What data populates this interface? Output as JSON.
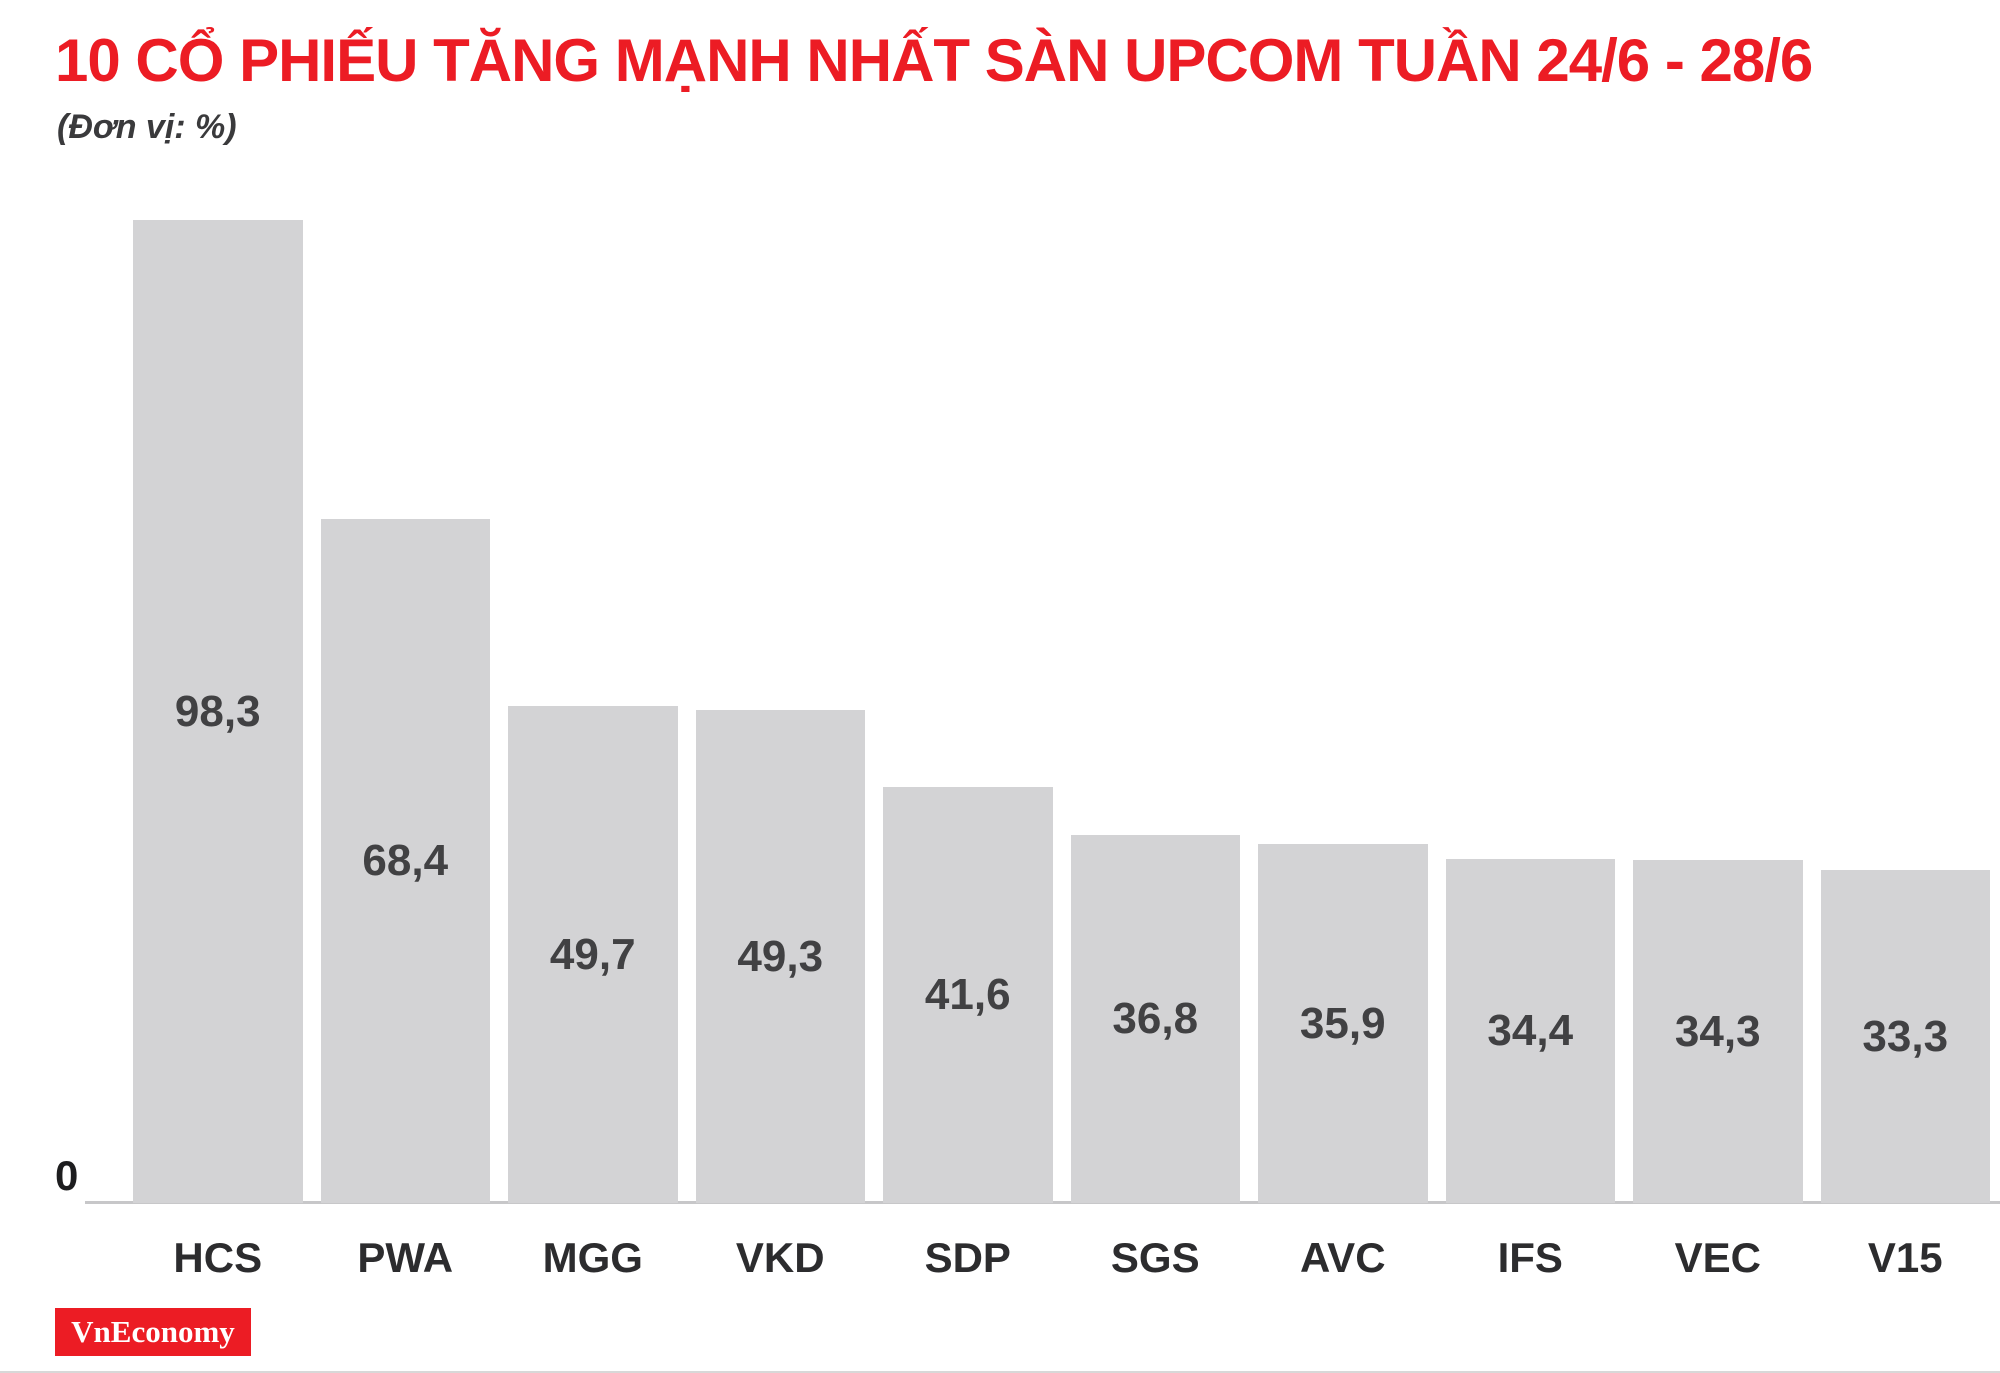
{
  "header": {
    "title": "10 CỔ PHIẾU TĂNG MẠNH NHẤT SÀN UPCOM TUẦN 24/6 - 28/6",
    "subtitle": "(Đơn vị: %)"
  },
  "chart_data": {
    "type": "bar",
    "categories": [
      "HCS",
      "PWA",
      "MGG",
      "VKD",
      "SDP",
      "SGS",
      "AVC",
      "IFS",
      "VEC",
      "V15"
    ],
    "values": [
      98.3,
      68.4,
      49.7,
      49.3,
      41.6,
      36.8,
      35.9,
      34.4,
      34.3,
      33.3
    ],
    "value_labels": [
      "98,3",
      "68,4",
      "49,7",
      "49,3",
      "41,6",
      "36,8",
      "35,9",
      "34,4",
      "34,3",
      "33,3"
    ],
    "title": "10 CỔ PHIẾU TĂNG MẠNH NHẤT SÀN UPCOM TUẦN 24/6 - 28/6",
    "xlabel": "",
    "ylabel": "%",
    "ylim": [
      0,
      100
    ],
    "baseline_label": "0",
    "grid": false,
    "legend": "none",
    "value_label_position": "inside-center",
    "bar_color": "#d3d3d5",
    "value_label_color": "#414143",
    "category_label_color": "#2c2c2e",
    "axis_line_color": "#c7c7c9"
  },
  "footer": {
    "logo_text": "VnEconomy",
    "logo_bg": "#ec1c24",
    "logo_text_color": "#ffffff"
  },
  "colors": {
    "title_red": "#ec1c24",
    "background": "#ffffff"
  }
}
